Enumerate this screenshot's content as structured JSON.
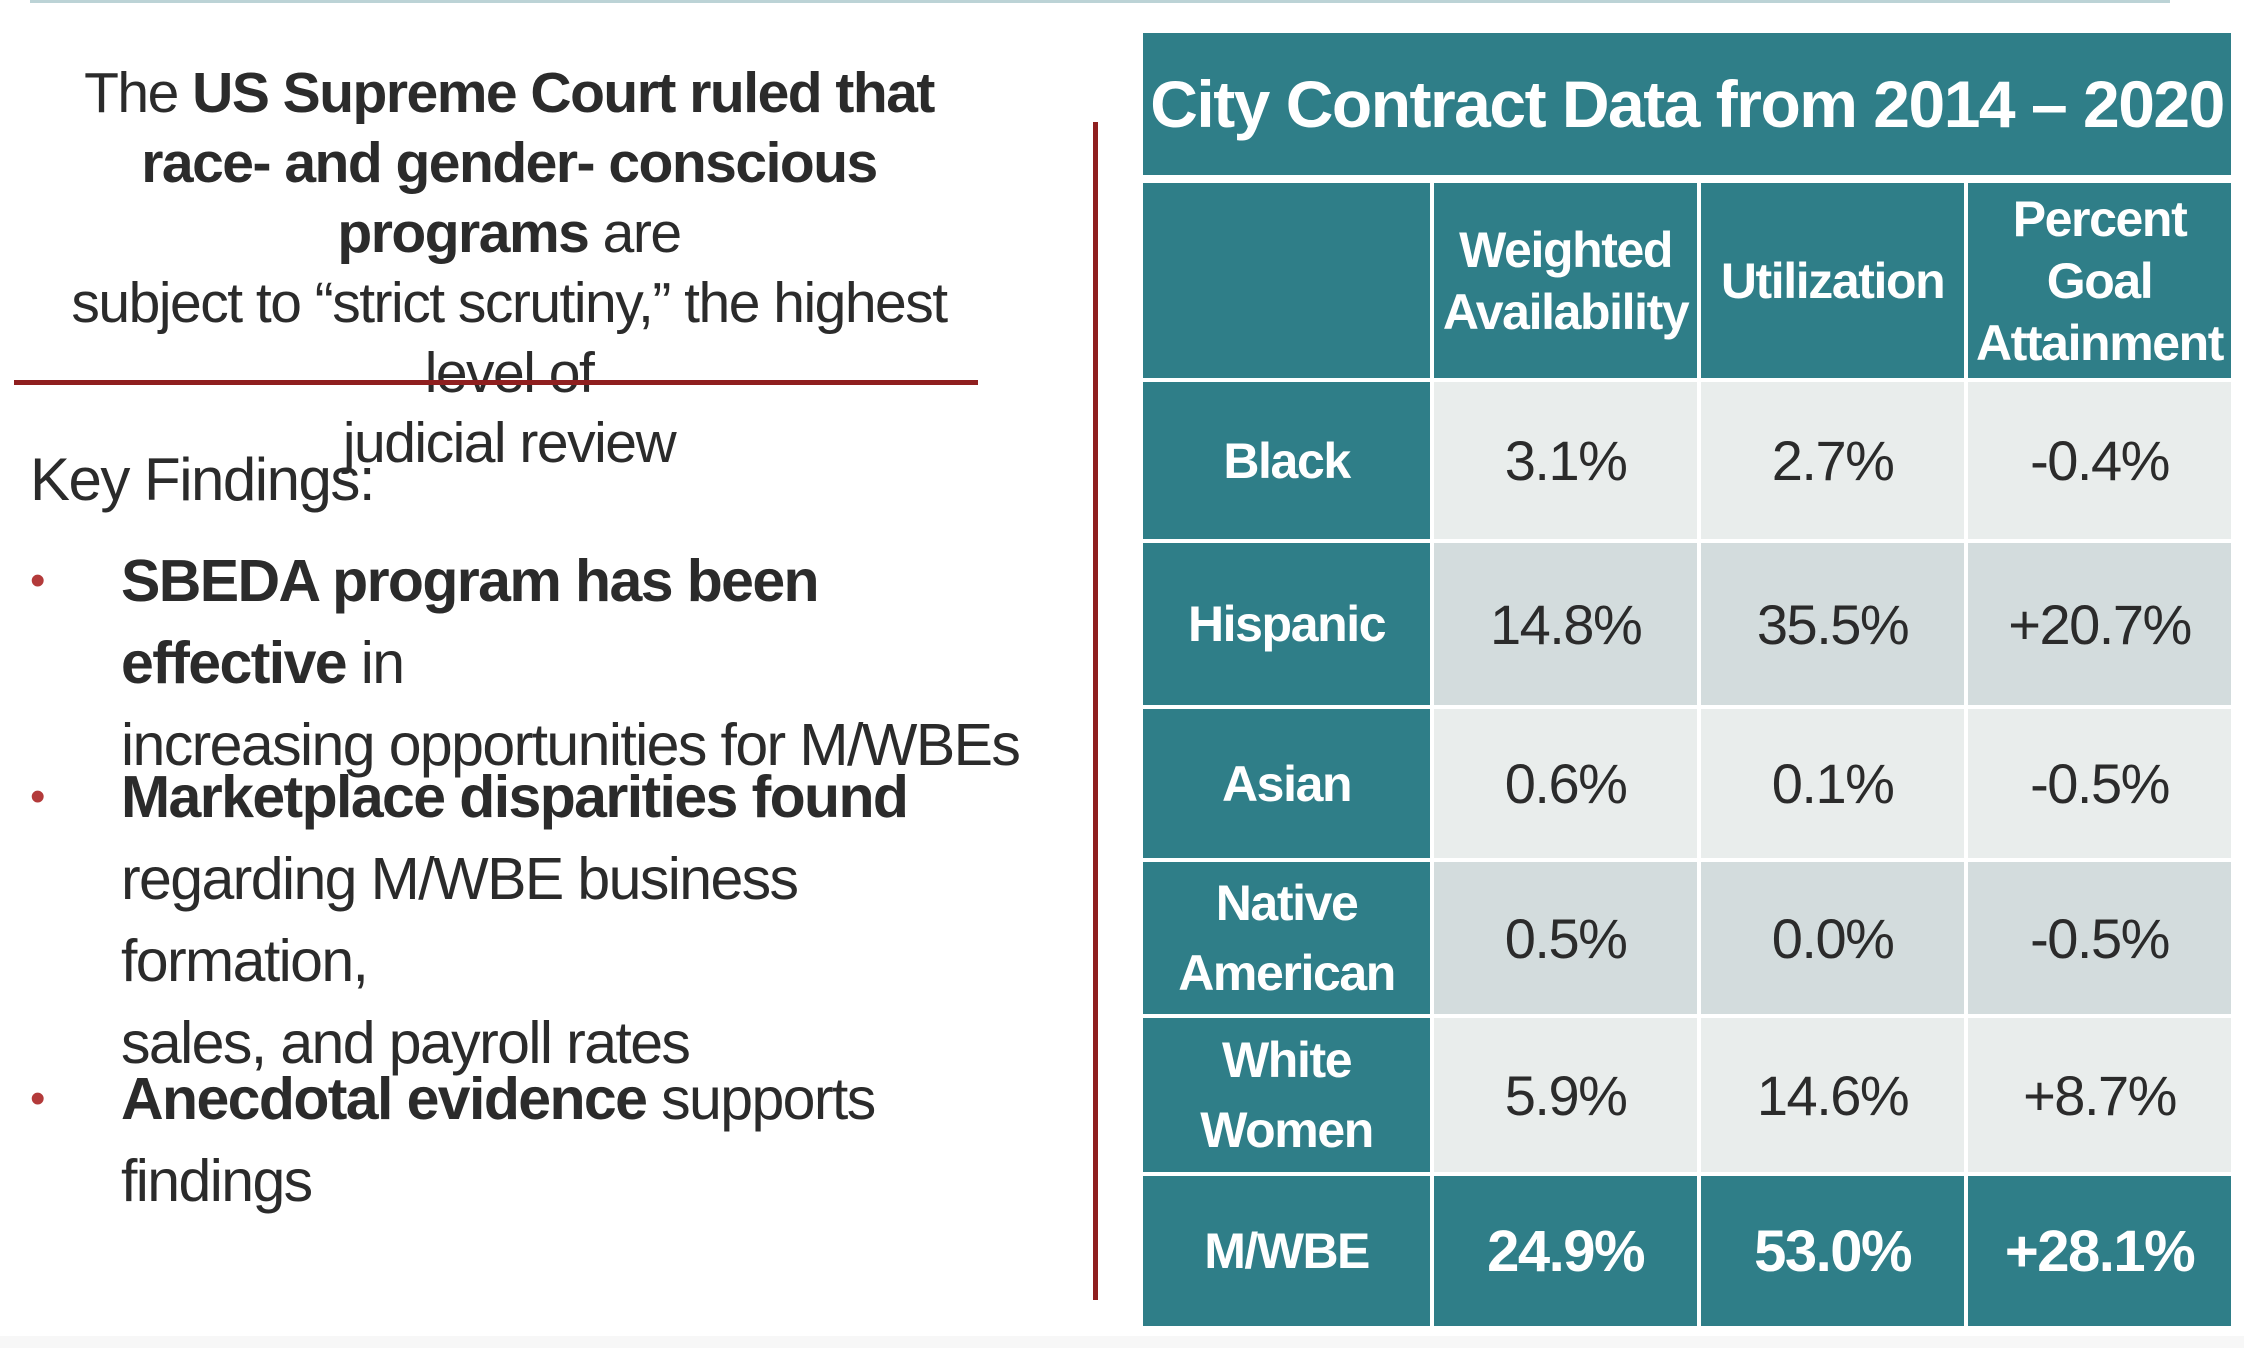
{
  "intro": {
    "parts": [
      {
        "text": "The ",
        "bold": false
      },
      {
        "text": "US Supreme Court ruled that race- and gender- conscious programs",
        "bold": true
      },
      {
        "text": " are subject to “strict scrutiny,” the highest level of judicial review",
        "bold": false
      }
    ],
    "prefix": "The ",
    "bold_1": "US Supreme Court ruled that",
    "bold_2": "race- and gender- conscious programs",
    "suffix_1": " are",
    "suffix_2": "subject to “strict scrutiny,” the highest level of",
    "suffix_3": "judicial review"
  },
  "key_findings": {
    "title": "Key Findings:",
    "bullet": "•",
    "items": [
      {
        "bold": "SBEDA program has been effective",
        "rest_line1": " in",
        "rest_line2": "increasing opportunities for M/WBEs"
      },
      {
        "bold": "Marketplace disparities found",
        "rest_line1": "",
        "rest_line2": "regarding M/WBE business formation,",
        "rest_line3": "sales, and payroll rates"
      },
      {
        "bold": "Anecdotal evidence",
        "rest_line1": " supports findings"
      }
    ]
  },
  "table": {
    "title": "City Contract Data from 2014 – 2020",
    "headers": {
      "col1_line1": "Weighted",
      "col1_line2": "Availability",
      "col2": "Utilization",
      "col3_line1": "Percent Goal",
      "col3_line2": "Attainment"
    },
    "rows": [
      {
        "label": "Black",
        "availability": "3.1%",
        "utilization": "2.7%",
        "attainment": "-0.4%"
      },
      {
        "label": "Hispanic",
        "availability": "14.8%",
        "utilization": "35.5%",
        "attainment": "+20.7%"
      },
      {
        "label": "Asian",
        "availability": "0.6%",
        "utilization": "0.1%",
        "attainment": "-0.5%"
      },
      {
        "label_line1": "Native",
        "label_line2": "American",
        "availability": "0.5%",
        "utilization": "0.0%",
        "attainment": "-0.5%"
      },
      {
        "label": "White Women",
        "availability": "5.9%",
        "utilization": "14.6%",
        "attainment": "+8.7%"
      }
    ],
    "total": {
      "label": "M/WBE",
      "availability": "24.9%",
      "utilization": "53.0%",
      "attainment": "+28.1%"
    }
  },
  "colors": {
    "teal": "#2f7e88",
    "accent_red": "#8f1f1f",
    "bullet_red": "#b33a3a",
    "light_cell": "#e9edec",
    "dark_cell": "#d3dcdd"
  }
}
